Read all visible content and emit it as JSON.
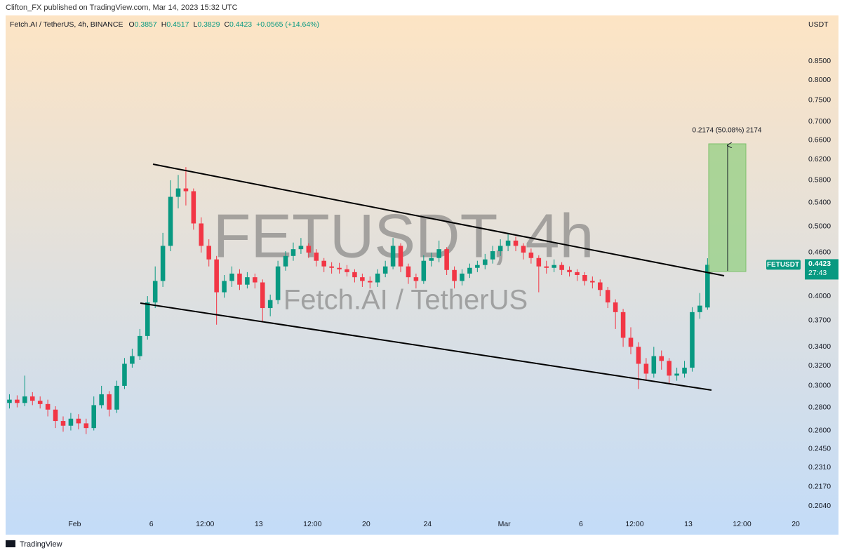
{
  "header": {
    "published": "Clifton_FX published on TradingView.com, Mar 14, 2023 15:32 UTC",
    "symbol": "Fetch.AI / TetherUS, 4h, BINANCE",
    "ohlc": [
      {
        "key": "O",
        "value": "0.3857"
      },
      {
        "key": "H",
        "value": "0.4517"
      },
      {
        "key": "L",
        "value": "0.3829"
      },
      {
        "key": "C",
        "value": "0.4423"
      }
    ],
    "change": "+0.0565 (+14.64%)"
  },
  "footer": {
    "brand": "TradingView"
  },
  "chart_data": {
    "type": "candlestick",
    "log": true,
    "grid": false,
    "watermark": "FETUSDT, 4h",
    "watermark_sub": "Fetch.AI / TetherUS",
    "currency": "USDT",
    "last_price": {
      "symbol": "FETUSDT",
      "price": "0.4423",
      "countdown": "27:43"
    },
    "measure": {
      "label": "0.2174 (50.08%) 2174"
    },
    "ylim": [
      0.187,
      0.984
    ],
    "yticks": [
      {
        "value": 0.85,
        "label": "0.8500"
      },
      {
        "value": 0.8,
        "label": "0.8000"
      },
      {
        "value": 0.75,
        "label": "0.7500"
      },
      {
        "value": 0.7,
        "label": "0.7000"
      },
      {
        "value": 0.66,
        "label": "0.6600"
      },
      {
        "value": 0.62,
        "label": "0.6200"
      },
      {
        "value": 0.58,
        "label": "0.5800"
      },
      {
        "value": 0.54,
        "label": "0.5400"
      },
      {
        "value": 0.5,
        "label": "0.5000"
      },
      {
        "value": 0.46,
        "label": "0.4600"
      },
      {
        "value": 0.4,
        "label": "0.4000"
      },
      {
        "value": 0.37,
        "label": "0.3700"
      },
      {
        "value": 0.34,
        "label": "0.3400"
      },
      {
        "value": 0.32,
        "label": "0.3200"
      },
      {
        "value": 0.3,
        "label": "0.3000"
      },
      {
        "value": 0.28,
        "label": "0.2800"
      },
      {
        "value": 0.26,
        "label": "0.2600"
      },
      {
        "value": 0.245,
        "label": "0.2450"
      },
      {
        "value": 0.231,
        "label": "0.2310"
      },
      {
        "value": 0.217,
        "label": "0.2170"
      },
      {
        "value": 0.204,
        "label": "0.2040"
      }
    ],
    "categories": [
      null,
      null,
      null,
      null,
      null,
      null,
      null,
      null,
      null,
      "Feb",
      null,
      null,
      null,
      null,
      null,
      null,
      null,
      null,
      null,
      "6",
      null,
      null,
      null,
      null,
      null,
      null,
      "12:00",
      null,
      null,
      null,
      null,
      null,
      null,
      "13",
      null,
      null,
      null,
      null,
      null,
      null,
      "12:00",
      null,
      null,
      null,
      null,
      null,
      null,
      "20",
      null,
      null,
      null,
      null,
      null,
      null,
      null,
      "24",
      null,
      null,
      null,
      null,
      null,
      null,
      null,
      null,
      null,
      "Mar",
      null,
      null,
      null,
      null,
      null,
      null,
      null,
      null,
      null,
      "6",
      null,
      null,
      null,
      null,
      null,
      null,
      "12:00",
      null,
      null,
      null,
      null,
      null,
      null,
      "13",
      null,
      null,
      null,
      null,
      null,
      null,
      "12:00",
      null,
      null,
      null,
      null,
      null,
      null,
      "20"
    ],
    "series": [
      {
        "color_up": "#089981",
        "color_down": "#f23645",
        "open": [
          0.284,
          0.287,
          0.284,
          0.29,
          0.286,
          0.283,
          0.278,
          0.268,
          0.264,
          0.27,
          0.266,
          0.262,
          0.282,
          0.292,
          0.278,
          0.3,
          0.322,
          0.33,
          0.352,
          0.392,
          0.42,
          0.47,
          0.55,
          0.565,
          0.56,
          0.505,
          0.47,
          0.45,
          0.405,
          0.42,
          0.43,
          0.415,
          0.425,
          0.418,
          0.385,
          0.395,
          0.44,
          0.455,
          0.465,
          0.47,
          0.46,
          0.448,
          0.44,
          0.438,
          0.436,
          0.432,
          0.425,
          0.42,
          0.418,
          0.43,
          0.44,
          0.47,
          0.44,
          0.425,
          0.42,
          0.448,
          0.452,
          0.465,
          0.435,
          0.42,
          0.43,
          0.438,
          0.442,
          0.45,
          0.462,
          0.47,
          0.478,
          0.47,
          0.46,
          0.452,
          0.44,
          0.438,
          0.442,
          0.435,
          0.432,
          0.428,
          0.42,
          0.418,
          0.408,
          0.392,
          0.38,
          0.35,
          0.34,
          0.322,
          0.312,
          0.33,
          0.325,
          0.31,
          0.312,
          0.318,
          0.38,
          0.3857,
          null,
          null,
          null,
          null,
          null,
          null,
          null,
          null,
          null,
          null,
          null,
          null
        ],
        "high": [
          0.292,
          0.291,
          0.31,
          0.294,
          0.29,
          0.287,
          0.281,
          0.272,
          0.275,
          0.274,
          0.27,
          0.29,
          0.3,
          0.295,
          0.305,
          0.328,
          0.338,
          0.36,
          0.4,
          0.44,
          0.49,
          0.58,
          0.59,
          0.605,
          0.565,
          0.515,
          0.48,
          0.455,
          0.428,
          0.44,
          0.436,
          0.432,
          0.43,
          0.422,
          0.402,
          0.448,
          0.462,
          0.475,
          0.482,
          0.474,
          0.465,
          0.452,
          0.446,
          0.445,
          0.442,
          0.436,
          0.43,
          0.426,
          0.436,
          0.448,
          0.482,
          0.474,
          0.444,
          0.43,
          0.456,
          0.46,
          0.478,
          0.468,
          0.44,
          0.436,
          0.444,
          0.448,
          0.458,
          0.47,
          0.48,
          0.49,
          0.484,
          0.474,
          0.466,
          0.456,
          0.448,
          0.45,
          0.446,
          0.44,
          0.436,
          0.432,
          0.426,
          0.422,
          0.412,
          0.396,
          0.384,
          0.362,
          0.345,
          0.328,
          0.34,
          0.336,
          0.328,
          0.318,
          0.325,
          0.386,
          0.404,
          0.4517,
          null,
          null,
          null,
          null,
          null,
          null,
          null,
          null,
          null,
          null,
          null,
          null
        ],
        "low": [
          0.279,
          0.28,
          0.281,
          0.282,
          0.279,
          0.272,
          0.262,
          0.259,
          0.26,
          0.261,
          0.257,
          0.26,
          0.279,
          0.272,
          0.275,
          0.297,
          0.318,
          0.326,
          0.348,
          0.385,
          0.412,
          0.462,
          0.53,
          0.535,
          0.495,
          0.46,
          0.44,
          0.365,
          0.398,
          0.412,
          0.408,
          0.41,
          0.41,
          0.368,
          0.375,
          0.39,
          0.434,
          0.448,
          0.458,
          0.452,
          0.44,
          0.432,
          0.43,
          0.43,
          0.426,
          0.418,
          0.412,
          0.41,
          0.412,
          0.425,
          0.436,
          0.432,
          0.416,
          0.41,
          0.416,
          0.44,
          0.446,
          0.428,
          0.41,
          0.414,
          0.424,
          0.432,
          0.436,
          0.444,
          0.455,
          0.462,
          0.462,
          0.45,
          0.444,
          0.405,
          0.43,
          0.432,
          0.428,
          0.426,
          0.42,
          0.414,
          0.41,
          0.4,
          0.385,
          0.36,
          0.34,
          0.332,
          0.297,
          0.305,
          0.308,
          0.316,
          0.302,
          0.305,
          0.308,
          0.314,
          0.372,
          0.3829,
          null,
          null,
          null,
          null,
          null,
          null,
          null,
          null,
          null,
          null,
          null,
          null
        ],
        "close": [
          0.287,
          0.284,
          0.29,
          0.286,
          0.283,
          0.278,
          0.268,
          0.264,
          0.27,
          0.266,
          0.262,
          0.282,
          0.292,
          0.278,
          0.3,
          0.322,
          0.33,
          0.352,
          0.392,
          0.42,
          0.47,
          0.55,
          0.565,
          0.56,
          0.505,
          0.47,
          0.45,
          0.405,
          0.42,
          0.43,
          0.415,
          0.425,
          0.418,
          0.385,
          0.395,
          0.44,
          0.455,
          0.465,
          0.47,
          0.46,
          0.448,
          0.44,
          0.438,
          0.436,
          0.432,
          0.425,
          0.42,
          0.418,
          0.43,
          0.44,
          0.47,
          0.44,
          0.425,
          0.42,
          0.448,
          0.452,
          0.465,
          0.435,
          0.42,
          0.43,
          0.438,
          0.442,
          0.45,
          0.462,
          0.47,
          0.478,
          0.47,
          0.46,
          0.452,
          0.44,
          0.438,
          0.442,
          0.435,
          0.432,
          0.428,
          0.42,
          0.418,
          0.408,
          0.392,
          0.38,
          0.35,
          0.34,
          0.322,
          0.312,
          0.33,
          0.325,
          0.31,
          0.312,
          0.318,
          0.38,
          0.388,
          0.4423,
          null,
          null,
          null,
          null,
          null,
          null,
          null,
          null,
          null,
          null,
          null,
          null
        ]
      }
    ]
  }
}
